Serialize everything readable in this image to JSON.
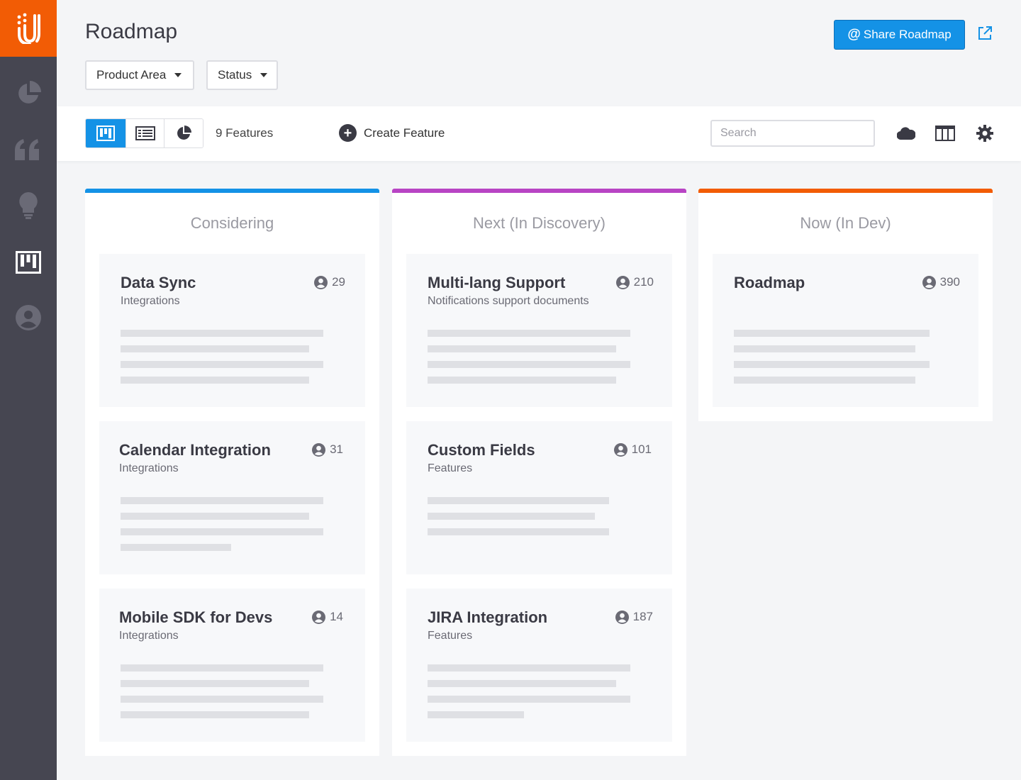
{
  "app": {
    "brand_color": "#f25c05",
    "accent_color": "#1492e6",
    "sidebar": {
      "items": [
        {
          "icon": "pie-chart-icon"
        },
        {
          "icon": "quote-icon"
        },
        {
          "icon": "lightbulb-icon"
        },
        {
          "icon": "roadmap-board-icon",
          "active": true
        },
        {
          "icon": "user-icon"
        }
      ]
    }
  },
  "header": {
    "title": "Roadmap",
    "filters": {
      "product_area": "Product Area",
      "status": "Status"
    },
    "share_label": "Share Roadmap",
    "share_icon_text": "@"
  },
  "toolbar": {
    "feature_count": "9 Features",
    "create_label": "Create Feature",
    "search_placeholder": "Search"
  },
  "columns": [
    {
      "title": "Considering",
      "color": "#1492e6",
      "cards": [
        {
          "title": "Data Sync",
          "subtitle": "Integrations",
          "votes": "29"
        },
        {
          "title": "Calendar Integration",
          "subtitle": "Integrations",
          "votes": "31"
        },
        {
          "title": "Mobile SDK for Devs",
          "subtitle": "Integrations",
          "votes": "14"
        }
      ]
    },
    {
      "title": "Next (In Discovery)",
      "color": "#b844c4",
      "cards": [
        {
          "title": "Multi-lang Support",
          "subtitle": "Notifications support documents",
          "votes": "210"
        },
        {
          "title": "Custom Fields",
          "subtitle": "Features",
          "votes": "101"
        },
        {
          "title": "JIRA Integration",
          "subtitle": "Features",
          "votes": "187"
        }
      ]
    },
    {
      "title": "Now (In Dev)",
      "color": "#f25c05",
      "cards": [
        {
          "title": "Roadmap",
          "subtitle": "",
          "votes": "390"
        }
      ]
    }
  ]
}
